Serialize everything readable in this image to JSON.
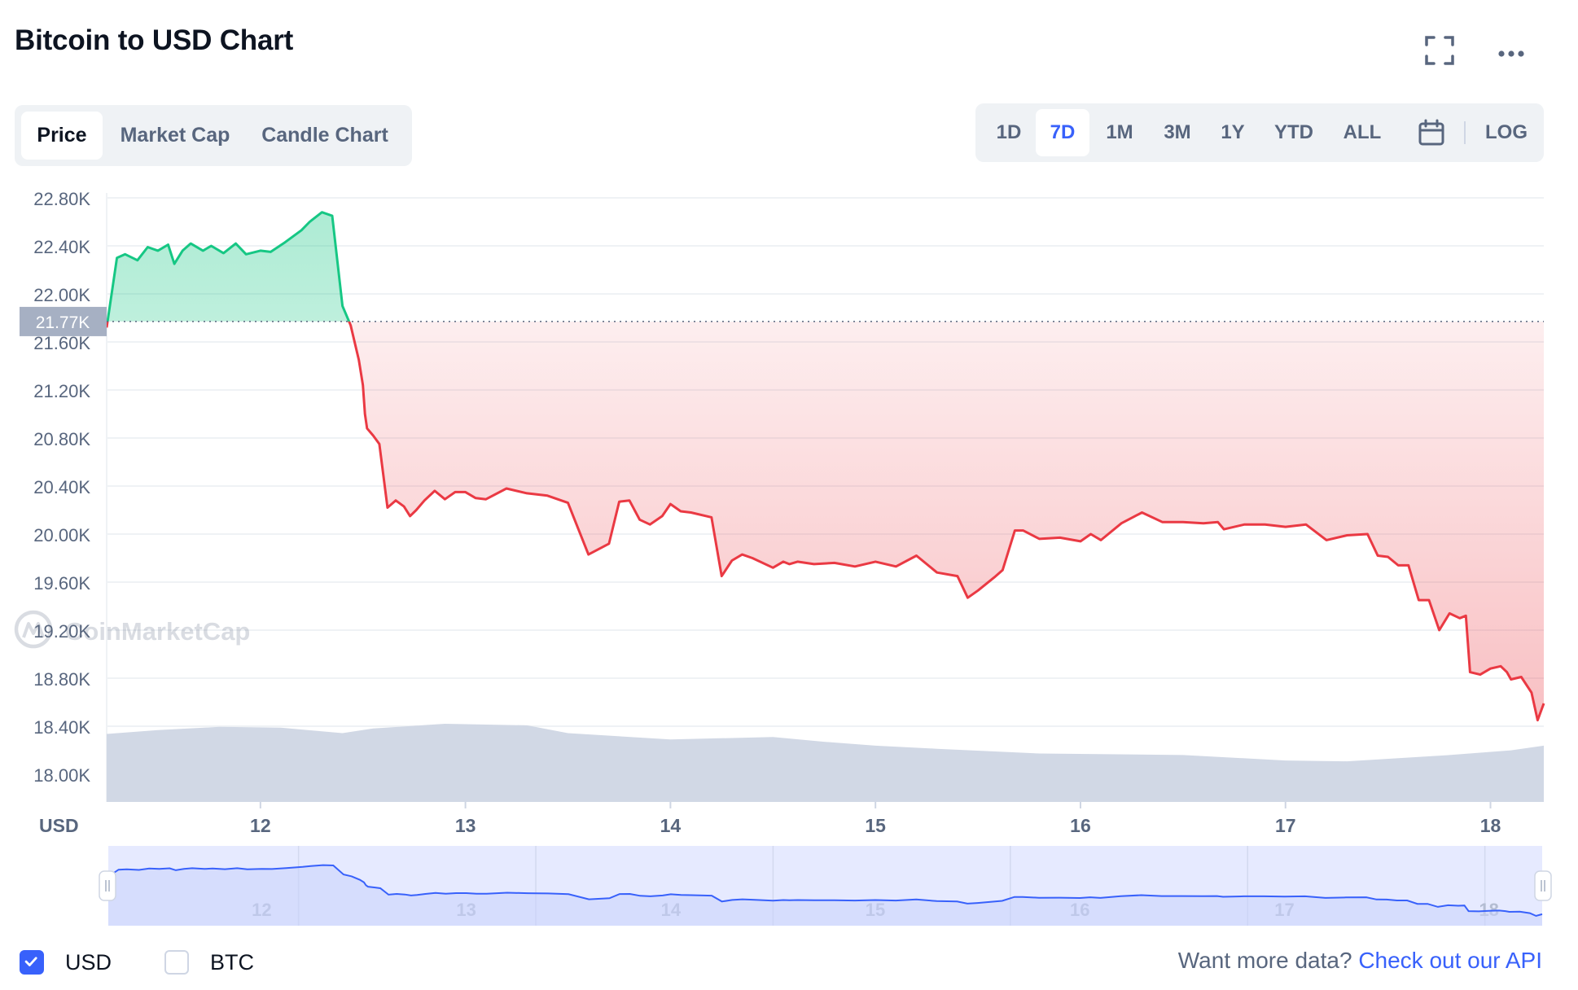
{
  "header": {
    "title": "Bitcoin to USD Chart",
    "icons": [
      "fullscreen-icon",
      "more-icon"
    ]
  },
  "tabs": [
    {
      "label": "Price",
      "active": true
    },
    {
      "label": "Market Cap",
      "active": false
    },
    {
      "label": "Candle Chart",
      "active": false
    }
  ],
  "ranges": [
    {
      "label": "1D",
      "active": false
    },
    {
      "label": "7D",
      "active": true
    },
    {
      "label": "1M",
      "active": false
    },
    {
      "label": "3M",
      "active": false
    },
    {
      "label": "1Y",
      "active": false
    },
    {
      "label": "YTD",
      "active": false
    },
    {
      "label": "ALL",
      "active": false
    },
    {
      "label": "LOG",
      "active": false
    }
  ],
  "watermark": "CoinMarketCap",
  "legend": [
    {
      "label": "USD",
      "checked": true
    },
    {
      "label": "BTC",
      "checked": false
    }
  ],
  "footer": {
    "text": "Want more data?",
    "link": "Check out our API"
  },
  "colors": {
    "up": "#16c784",
    "down": "#ea3943",
    "volume": "#cfd6e4",
    "accent": "#3861fb",
    "navigator": "#e6eaff"
  },
  "chart_data": {
    "type": "area",
    "title": "Bitcoin to USD Chart",
    "ylabel": "USD",
    "ylim": [
      17800,
      22850
    ],
    "yticks": [
      "22.80K",
      "22.40K",
      "22.00K",
      "21.60K",
      "21.20K",
      "20.80K",
      "20.40K",
      "20.00K",
      "19.60K",
      "19.20K",
      "18.80K",
      "18.40K",
      "18.00K"
    ],
    "xticks": [
      "12",
      "13",
      "14",
      "15",
      "16",
      "17",
      "18"
    ],
    "xlim": [
      11.25,
      18.26
    ],
    "reference_price": 21770,
    "reference_label": "21.77K",
    "price_series": {
      "name": "USD",
      "x": [
        11.25,
        11.3,
        11.34,
        11.4,
        11.45,
        11.5,
        11.55,
        11.58,
        11.62,
        11.66,
        11.72,
        11.76,
        11.82,
        11.88,
        11.93,
        12.0,
        12.05,
        12.12,
        12.2,
        12.24,
        12.3,
        12.35,
        12.4,
        12.44,
        12.48,
        12.5,
        12.51,
        12.52,
        12.55,
        12.58,
        12.62,
        12.66,
        12.7,
        12.73,
        12.76,
        12.8,
        12.85,
        12.9,
        12.95,
        13.0,
        13.05,
        13.1,
        13.2,
        13.3,
        13.4,
        13.5,
        13.6,
        13.7,
        13.75,
        13.8,
        13.85,
        13.9,
        13.96,
        14.0,
        14.05,
        14.1,
        14.2,
        14.25,
        14.3,
        14.35,
        14.4,
        14.5,
        14.55,
        14.58,
        14.62,
        14.7,
        14.8,
        14.9,
        15.0,
        15.1,
        15.2,
        15.3,
        15.4,
        15.45,
        15.5,
        15.58,
        15.62,
        15.68,
        15.72,
        15.8,
        15.9,
        16.0,
        16.05,
        16.1,
        16.2,
        16.3,
        16.4,
        16.5,
        16.6,
        16.67,
        16.7,
        16.8,
        16.9,
        17.0,
        17.1,
        17.2,
        17.3,
        17.4,
        17.45,
        17.5,
        17.55,
        17.6,
        17.65,
        17.7,
        17.75,
        17.8,
        17.85,
        17.88,
        17.9,
        17.95,
        18.0,
        18.05,
        18.08,
        18.1,
        18.15,
        18.2,
        18.23,
        18.26
      ],
      "values": [
        21720,
        22300,
        22330,
        22280,
        22390,
        22360,
        22410,
        22250,
        22360,
        22420,
        22360,
        22400,
        22340,
        22420,
        22330,
        22360,
        22350,
        22430,
        22530,
        22600,
        22680,
        22650,
        21900,
        21740,
        21450,
        21240,
        21000,
        20880,
        20820,
        20750,
        20220,
        20280,
        20230,
        20150,
        20200,
        20280,
        20360,
        20290,
        20350,
        20350,
        20300,
        20290,
        20380,
        20340,
        20320,
        20260,
        19830,
        19920,
        20270,
        20280,
        20120,
        20080,
        20150,
        20250,
        20190,
        20180,
        20140,
        19650,
        19780,
        19830,
        19800,
        19720,
        19770,
        19750,
        19770,
        19750,
        19760,
        19730,
        19770,
        19730,
        19820,
        19680,
        19650,
        19470,
        19530,
        19640,
        19700,
        20030,
        20030,
        19960,
        19970,
        19940,
        20000,
        19950,
        20090,
        20180,
        20100,
        20100,
        20090,
        20100,
        20040,
        20080,
        20080,
        20060,
        20080,
        19950,
        19990,
        20000,
        19820,
        19810,
        19740,
        19740,
        19450,
        19450,
        19200,
        19340,
        19300,
        19320,
        18850,
        18830,
        18880,
        18900,
        18850,
        18790,
        18810,
        18680,
        18450,
        18590
      ]
    },
    "volume_series": {
      "name": "Volume",
      "x": [
        11.25,
        11.5,
        11.8,
        12.1,
        12.4,
        12.55,
        12.9,
        13.3,
        13.5,
        14.0,
        14.5,
        14.75,
        15.0,
        15.3,
        15.8,
        16.5,
        17.0,
        17.3,
        17.8,
        18.1,
        18.26
      ],
      "relative_values": [
        0.87,
        0.92,
        0.96,
        0.95,
        0.88,
        0.94,
        1.0,
        0.98,
        0.88,
        0.8,
        0.83,
        0.77,
        0.72,
        0.68,
        0.62,
        0.6,
        0.53,
        0.52,
        0.6,
        0.66,
        0.72
      ]
    },
    "navigator_ticks": [
      "12",
      "13",
      "14",
      "15",
      "16",
      "17",
      "18"
    ]
  }
}
